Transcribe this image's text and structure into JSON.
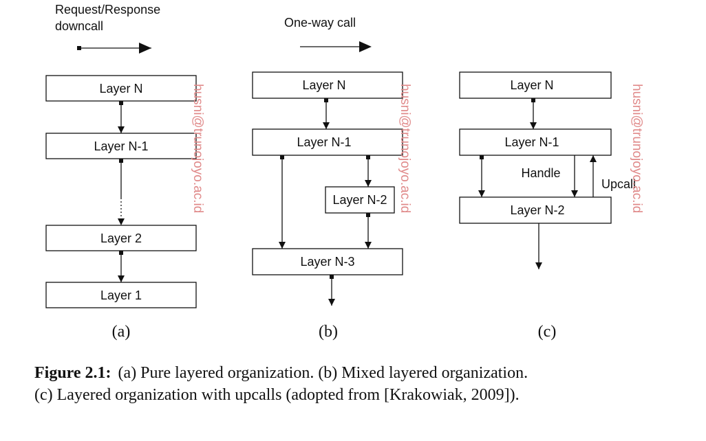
{
  "legend": {
    "request_response": [
      "Request/Response",
      "downcall"
    ],
    "one_way": "One-way call"
  },
  "diagram_a": {
    "layers": [
      "Layer N",
      "Layer N-1",
      "Layer 2",
      "Layer 1"
    ],
    "label": "(a)"
  },
  "diagram_b": {
    "layers": [
      "Layer N",
      "Layer N-1",
      "Layer N-2",
      "Layer N-3"
    ],
    "label": "(b)"
  },
  "diagram_c": {
    "layers": [
      "Layer N",
      "Layer N-1",
      "Layer N-2"
    ],
    "handle": "Handle",
    "upcall": "Upcall",
    "label": "(c)"
  },
  "watermark": "husni@trunojoyo.ac.id",
  "caption": {
    "lead": "Figure 2.1:",
    "line1": "(a) Pure layered organization.  (b) Mixed layered organization.",
    "line2": "(c) Layered organization with upcalls (adopted from [Krakowiak, 2009])."
  }
}
